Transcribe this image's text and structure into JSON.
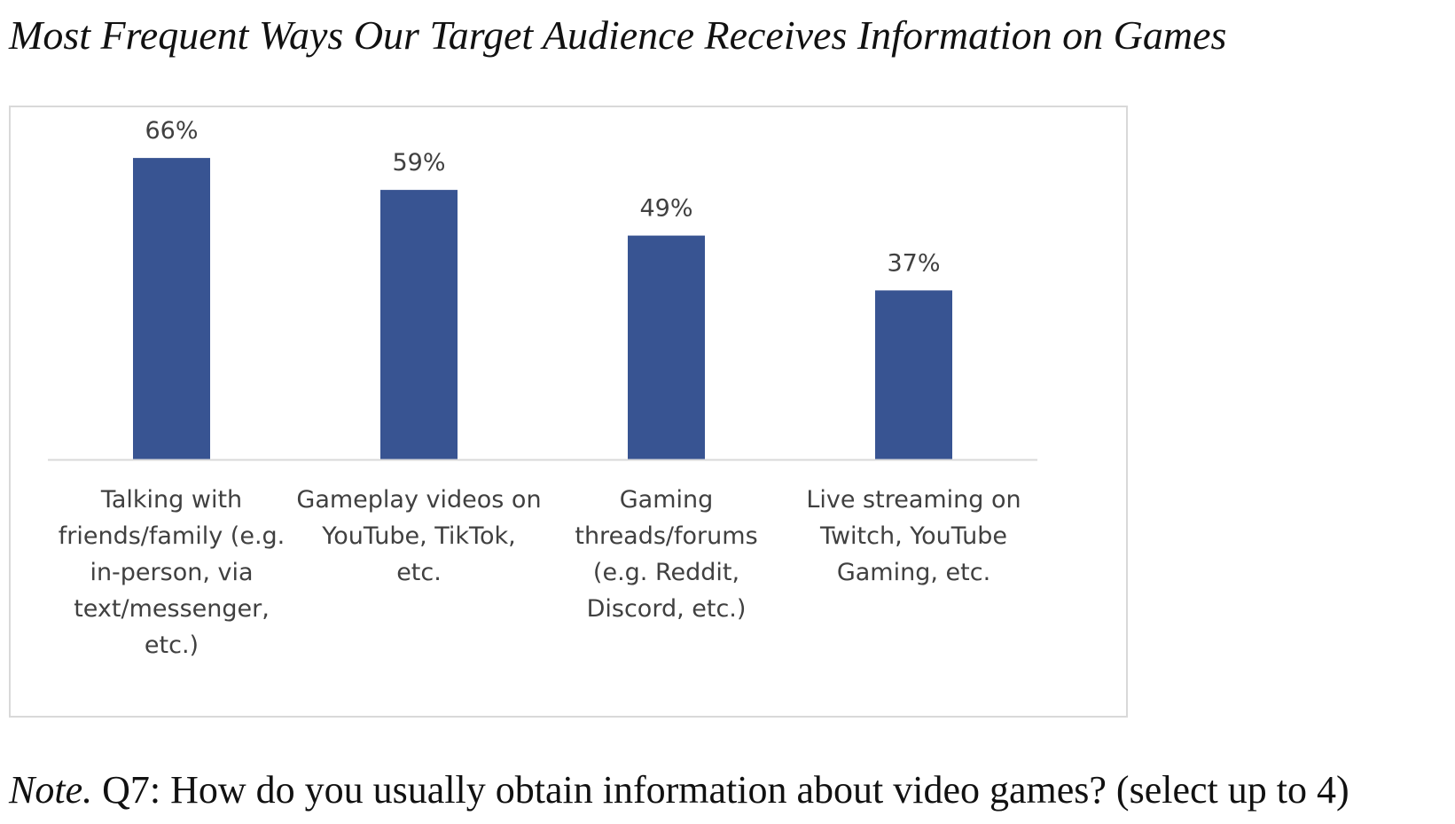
{
  "page": {
    "title": "Most Frequent Ways Our Target Audience Receives Information on Games",
    "note_label": "Note.",
    "note_text": " Q7: How do you usually obtain information about video games? (select up to 4)"
  },
  "colors": {
    "bar": "#385492",
    "axis": "#d9d9d9",
    "text": "#404040"
  },
  "chart_data": {
    "type": "bar",
    "title": "Most Frequent Ways Our Target Audience Receives Information on Games",
    "xlabel": "",
    "ylabel": "",
    "ylim": [
      0,
      70
    ],
    "grid": false,
    "legend": "none",
    "categories": [
      [
        "Talking with",
        "friends/family (e.g.",
        "in-person, via",
        "text/messenger,",
        "etc.)"
      ],
      [
        "Gameplay videos on",
        "YouTube, TikTok,",
        "etc."
      ],
      [
        "Gaming",
        "threads/forums",
        "(e.g. Reddit,",
        "Discord, etc.)"
      ],
      [
        "Live streaming on",
        "Twitch, YouTube",
        "Gaming, etc."
      ]
    ],
    "values": [
      66,
      59,
      49,
      37
    ],
    "data_labels": [
      "66%",
      "59%",
      "49%",
      "37%"
    ],
    "unit": "%"
  }
}
